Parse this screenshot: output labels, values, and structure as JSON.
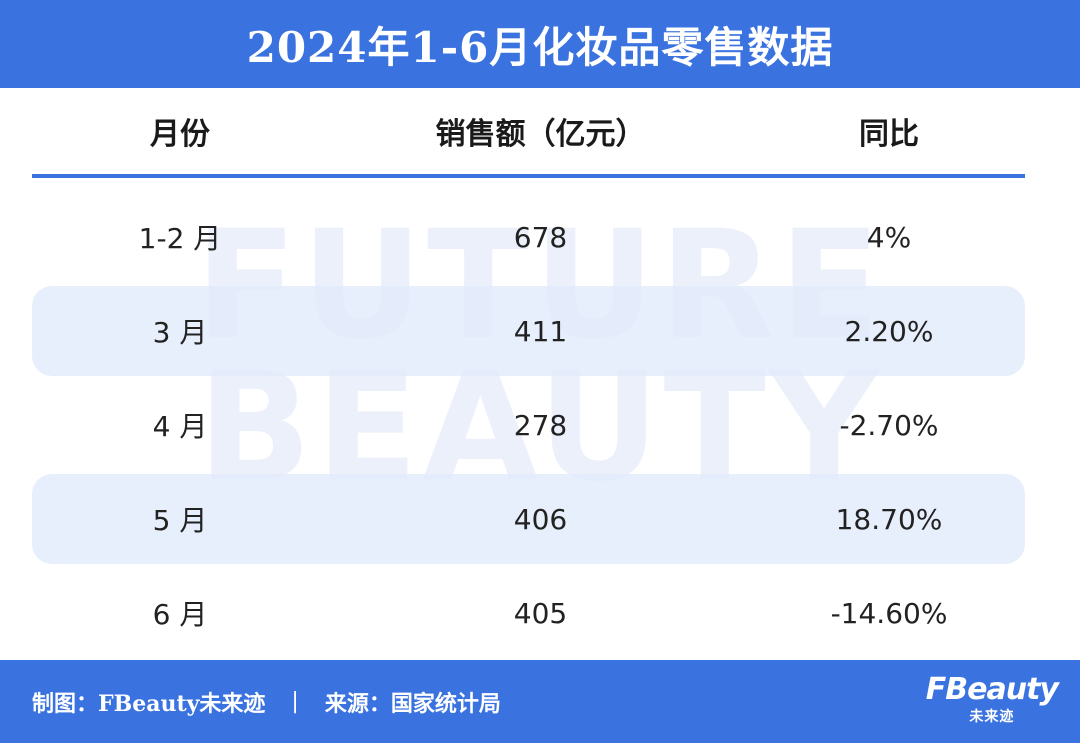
{
  "title": "2024年1-6月化妆品零售数据",
  "watermark": [
    "FUTURE",
    "BEAUTY"
  ],
  "chart_data": {
    "type": "table",
    "title": "2024年1-6月化妆品零售数据",
    "columns": [
      "月份",
      "销售额（亿元）",
      "同比"
    ],
    "rows": [
      [
        "1-2 月",
        "678",
        "4%"
      ],
      [
        "3 月",
        "411",
        "2.20%"
      ],
      [
        "4 月",
        "278",
        "-2.70%"
      ],
      [
        "5 月",
        "406",
        "18.70%"
      ],
      [
        "6 月",
        "405",
        "-14.60%"
      ]
    ]
  },
  "footer": {
    "maker": "制图：FBeauty未来迹",
    "separator": "|",
    "source": "来源：国家统计局"
  },
  "logo": {
    "brand": "FBeauty",
    "sub": "未来迹"
  },
  "colors": {
    "accent": "#3a73df",
    "row_shade": "#e2eafb",
    "watermark": "#e9eefb"
  }
}
